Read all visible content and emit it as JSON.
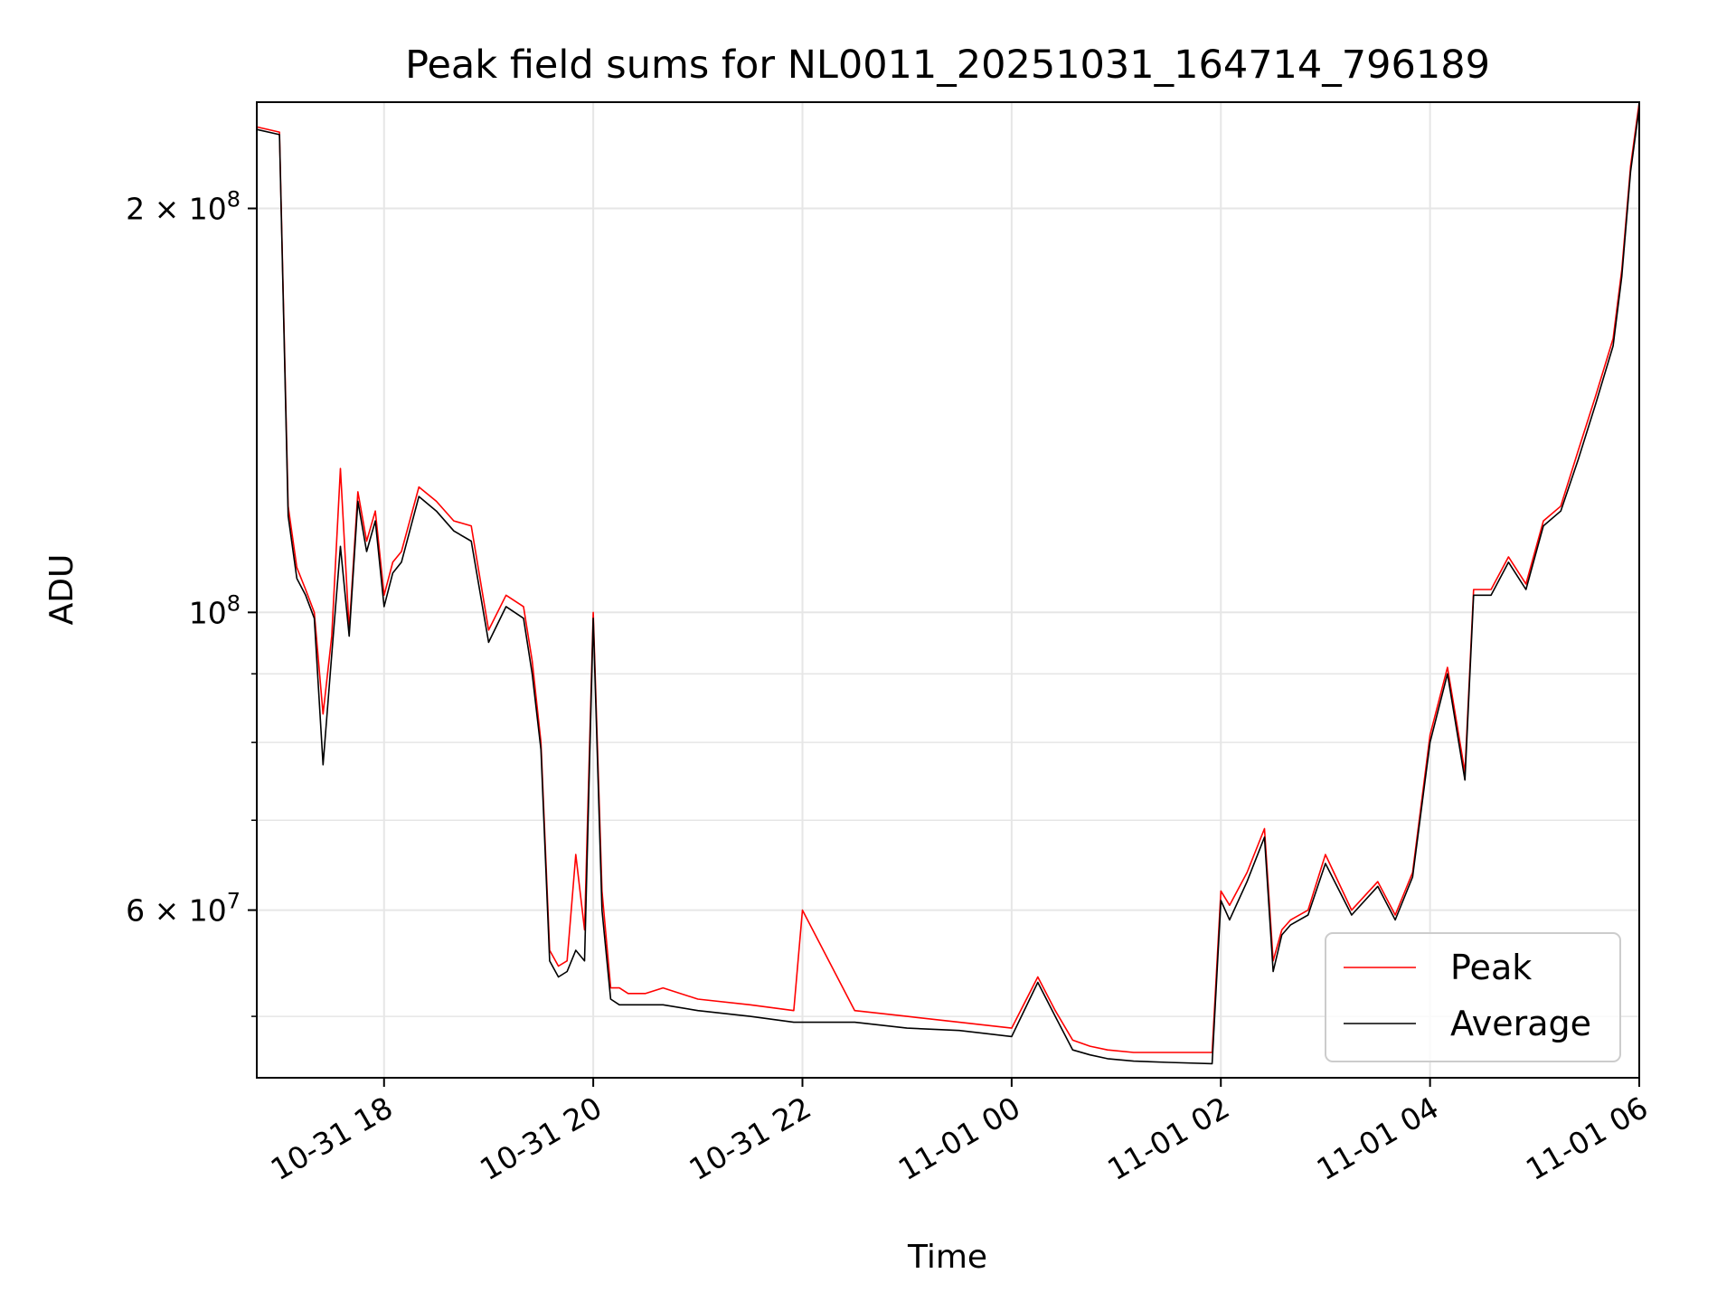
{
  "chart_data": {
    "type": "line",
    "title": "Peak field sums for NL0011_20251031_164714_796189",
    "xlabel": "Time",
    "ylabel": "ADU",
    "yscale": "log",
    "xlim": [
      "2025-10-31 16:47",
      "2025-11-01 06:00"
    ],
    "ylim": [
      45000000,
      240000000
    ],
    "grid": true,
    "legend": {
      "position": "lower right",
      "entries": [
        "Peak",
        "Average"
      ]
    },
    "x_ticks": [
      "10-31 18",
      "10-31 20",
      "10-31 22",
      "11-01 00",
      "11-01 02",
      "11-01 04",
      "11-01 06"
    ],
    "x_tick_values": [
      "2025-10-31 18:00",
      "2025-10-31 20:00",
      "2025-10-31 22:00",
      "2025-11-01 00:00",
      "2025-11-01 02:00",
      "2025-11-01 04:00",
      "2025-11-01 06:00"
    ],
    "y_ticks_major": [
      {
        "value": 200000000,
        "mantissa": "2",
        "exponent": "8"
      },
      {
        "value": 100000000,
        "mantissa": "",
        "exponent": "8"
      },
      {
        "value": 60000000,
        "mantissa": "6",
        "exponent": "7"
      }
    ],
    "y_ticks_minor": [
      50000000,
      70000000,
      80000000,
      90000000
    ],
    "series": [
      {
        "name": "Peak",
        "color": "#ff0000",
        "x": [
          "2025-10-31 16:47",
          "2025-10-31 17:00",
          "2025-10-31 17:05",
          "2025-10-31 17:10",
          "2025-10-31 17:15",
          "2025-10-31 17:20",
          "2025-10-31 17:25",
          "2025-10-31 17:30",
          "2025-10-31 17:35",
          "2025-10-31 17:40",
          "2025-10-31 17:45",
          "2025-10-31 17:50",
          "2025-10-31 17:55",
          "2025-10-31 18:00",
          "2025-10-31 18:05",
          "2025-10-31 18:10",
          "2025-10-31 18:20",
          "2025-10-31 18:30",
          "2025-10-31 18:40",
          "2025-10-31 18:50",
          "2025-10-31 19:00",
          "2025-10-31 19:10",
          "2025-10-31 19:20",
          "2025-10-31 19:25",
          "2025-10-31 19:30",
          "2025-10-31 19:35",
          "2025-10-31 19:40",
          "2025-10-31 19:45",
          "2025-10-31 19:50",
          "2025-10-31 19:55",
          "2025-10-31 20:00",
          "2025-10-31 20:05",
          "2025-10-31 20:10",
          "2025-10-31 20:15",
          "2025-10-31 20:20",
          "2025-10-31 20:30",
          "2025-10-31 20:40",
          "2025-10-31 21:00",
          "2025-10-31 21:30",
          "2025-10-31 21:55",
          "2025-10-31 22:00",
          "2025-10-31 22:30",
          "2025-10-31 23:00",
          "2025-10-31 23:30",
          "2025-11-01 00:00",
          "2025-11-01 00:15",
          "2025-11-01 00:25",
          "2025-11-01 00:35",
          "2025-11-01 00:45",
          "2025-11-01 00:55",
          "2025-11-01 01:10",
          "2025-11-01 01:30",
          "2025-11-01 01:55",
          "2025-11-01 02:00",
          "2025-11-01 02:05",
          "2025-11-01 02:15",
          "2025-11-01 02:25",
          "2025-11-01 02:30",
          "2025-11-01 02:35",
          "2025-11-01 02:40",
          "2025-11-01 02:50",
          "2025-11-01 03:00",
          "2025-11-01 03:15",
          "2025-11-01 03:30",
          "2025-11-01 03:40",
          "2025-11-01 03:50",
          "2025-11-01 04:00",
          "2025-11-01 04:10",
          "2025-11-01 04:20",
          "2025-11-01 04:25",
          "2025-11-01 04:35",
          "2025-11-01 04:45",
          "2025-11-01 04:55",
          "2025-11-01 05:05",
          "2025-11-01 05:15",
          "2025-11-01 05:25",
          "2025-11-01 05:35",
          "2025-11-01 05:45",
          "2025-11-01 05:50",
          "2025-11-01 05:55",
          "2025-11-01 06:00"
        ],
        "y": [
          230000000,
          228000000,
          120000000,
          108000000,
          104000000,
          100000000,
          84000000,
          96000000,
          128000000,
          97000000,
          123000000,
          113000000,
          119000000,
          103000000,
          109000000,
          111000000,
          124000000,
          121000000,
          117000000,
          116000000,
          97000000,
          103000000,
          101000000,
          92000000,
          80000000,
          56000000,
          54500000,
          55000000,
          66000000,
          58000000,
          100000000,
          62000000,
          52500000,
          52500000,
          52000000,
          52000000,
          52500000,
          51500000,
          51000000,
          50500000,
          60000000,
          50500000,
          50000000,
          49500000,
          49000000,
          53500000,
          50500000,
          48000000,
          47500000,
          47200000,
          47000000,
          47000000,
          47000000,
          62000000,
          60500000,
          64000000,
          69000000,
          55000000,
          58000000,
          59000000,
          60000000,
          66000000,
          60000000,
          63000000,
          59500000,
          64000000,
          81000000,
          91000000,
          76000000,
          104000000,
          104000000,
          110000000,
          105000000,
          117000000,
          120000000,
          132000000,
          145000000,
          160000000,
          180000000,
          215000000,
          240000000
        ]
      },
      {
        "name": "Average",
        "color": "#000000",
        "x": [
          "2025-10-31 16:47",
          "2025-10-31 17:00",
          "2025-10-31 17:05",
          "2025-10-31 17:10",
          "2025-10-31 17:15",
          "2025-10-31 17:20",
          "2025-10-31 17:25",
          "2025-10-31 17:30",
          "2025-10-31 17:35",
          "2025-10-31 17:40",
          "2025-10-31 17:45",
          "2025-10-31 17:50",
          "2025-10-31 17:55",
          "2025-10-31 18:00",
          "2025-10-31 18:05",
          "2025-10-31 18:10",
          "2025-10-31 18:20",
          "2025-10-31 18:30",
          "2025-10-31 18:40",
          "2025-10-31 18:50",
          "2025-10-31 19:00",
          "2025-10-31 19:10",
          "2025-10-31 19:20",
          "2025-10-31 19:25",
          "2025-10-31 19:30",
          "2025-10-31 19:35",
          "2025-10-31 19:40",
          "2025-10-31 19:45",
          "2025-10-31 19:50",
          "2025-10-31 19:55",
          "2025-10-31 20:00",
          "2025-10-31 20:05",
          "2025-10-31 20:10",
          "2025-10-31 20:15",
          "2025-10-31 20:20",
          "2025-10-31 20:30",
          "2025-10-31 20:40",
          "2025-10-31 21:00",
          "2025-10-31 21:30",
          "2025-10-31 21:55",
          "2025-10-31 22:00",
          "2025-10-31 22:30",
          "2025-10-31 23:00",
          "2025-10-31 23:30",
          "2025-11-01 00:00",
          "2025-11-01 00:15",
          "2025-11-01 00:25",
          "2025-11-01 00:35",
          "2025-11-01 00:45",
          "2025-11-01 00:55",
          "2025-11-01 01:10",
          "2025-11-01 01:30",
          "2025-11-01 01:55",
          "2025-11-01 02:00",
          "2025-11-01 02:05",
          "2025-11-01 02:15",
          "2025-11-01 02:25",
          "2025-11-01 02:30",
          "2025-11-01 02:35",
          "2025-11-01 02:40",
          "2025-11-01 02:50",
          "2025-11-01 03:00",
          "2025-11-01 03:15",
          "2025-11-01 03:30",
          "2025-11-01 03:40",
          "2025-11-01 03:50",
          "2025-11-01 04:00",
          "2025-11-01 04:10",
          "2025-11-01 04:20",
          "2025-11-01 04:25",
          "2025-11-01 04:35",
          "2025-11-01 04:45",
          "2025-11-01 04:55",
          "2025-11-01 05:05",
          "2025-11-01 05:15",
          "2025-11-01 05:25",
          "2025-11-01 05:35",
          "2025-11-01 05:45",
          "2025-11-01 05:50",
          "2025-11-01 05:55",
          "2025-11-01 06:00"
        ],
        "y": [
          229000000,
          227000000,
          118000000,
          106000000,
          103000000,
          99000000,
          77000000,
          93000000,
          112000000,
          96000000,
          121000000,
          111000000,
          117000000,
          101000000,
          107000000,
          109000000,
          122000000,
          119000000,
          115000000,
          113000000,
          95000000,
          101000000,
          99000000,
          90000000,
          79000000,
          55000000,
          53500000,
          54000000,
          56000000,
          55000000,
          99000000,
          60000000,
          51500000,
          51000000,
          51000000,
          51000000,
          51000000,
          50500000,
          50000000,
          49500000,
          49500000,
          49500000,
          49000000,
          48800000,
          48300000,
          53000000,
          50000000,
          47200000,
          46800000,
          46500000,
          46300000,
          46200000,
          46100000,
          61000000,
          59000000,
          63000000,
          68000000,
          54000000,
          57500000,
          58500000,
          59500000,
          65000000,
          59500000,
          62500000,
          59000000,
          63500000,
          80000000,
          90000000,
          75000000,
          103000000,
          103000000,
          109000000,
          104000000,
          116000000,
          119000000,
          130000000,
          143000000,
          158000000,
          178000000,
          213000000,
          238000000
        ]
      }
    ]
  }
}
